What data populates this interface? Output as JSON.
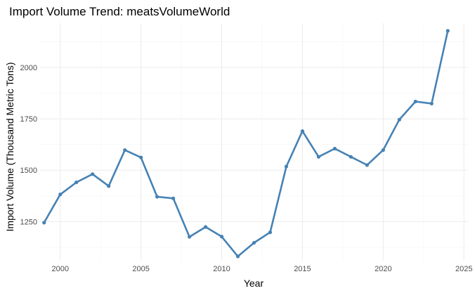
{
  "chart_data": {
    "type": "line",
    "title": "Import Volume Trend: meatsVolumeWorld",
    "xlabel": "Year",
    "ylabel": "Import Volume (Thousand Metric Tons)",
    "x_ticks": [
      "2000",
      "2005",
      "2010",
      "2015",
      "2020",
      "2025"
    ],
    "y_ticks": [
      "1250",
      "1500",
      "1750",
      "2000"
    ],
    "xlim": [
      1998.75,
      2025.25
    ],
    "ylim": [
      1060,
      2215
    ],
    "grid": true,
    "legend": "none",
    "series": [
      {
        "color": "#4682b4",
        "x": [
          1999,
          2000,
          2001,
          2002,
          2003,
          2004,
          2005,
          2006,
          2007,
          2008,
          2009,
          2010,
          2011,
          2012,
          2013,
          2014,
          2015,
          2016,
          2017,
          2018,
          2019,
          2020,
          2021,
          2022,
          2023,
          2024
        ],
        "values": [
          1245,
          1382,
          1441,
          1481,
          1423,
          1598,
          1562,
          1371,
          1363,
          1176,
          1224,
          1177,
          1081,
          1147,
          1198,
          1518,
          1690,
          1565,
          1605,
          1565,
          1525,
          1598,
          1746,
          1834,
          1824,
          2178
        ]
      }
    ]
  }
}
